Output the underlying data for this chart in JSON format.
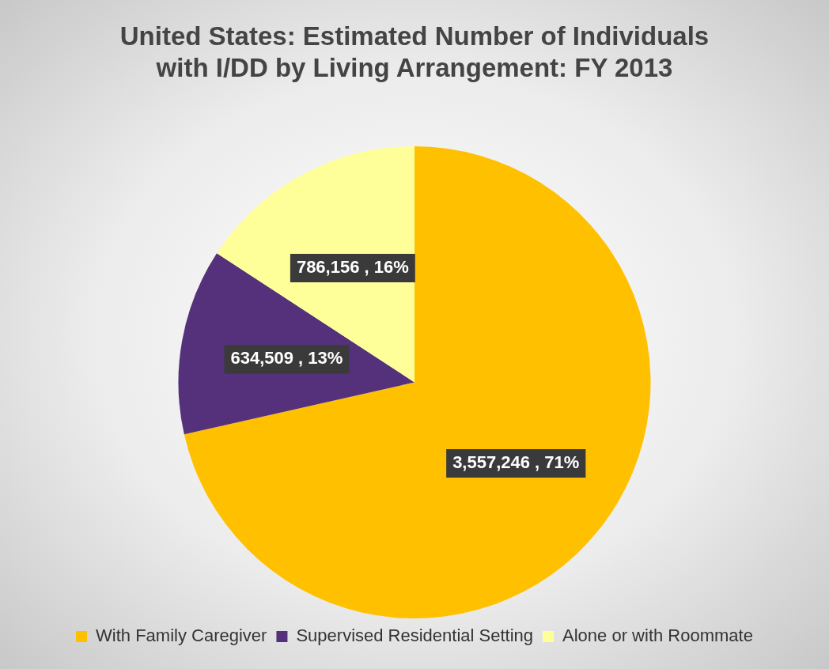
{
  "chart_data": {
    "type": "pie",
    "title": "United States: Estimated Number of Individuals with I/DD by Living Arrangement: FY 2013",
    "categories": [
      "With Family Caregiver",
      "Supervised Residential Setting",
      "Alone or with Roommate"
    ],
    "values": [
      3557246,
      634509,
      786156
    ],
    "colors": [
      "#ffc000",
      "#54317a",
      "#ffff99"
    ],
    "value_labels": [
      "3,557,246 , 71%",
      "634,509 , 13%",
      "786,156 , 16%"
    ],
    "legend": "bottom"
  }
}
